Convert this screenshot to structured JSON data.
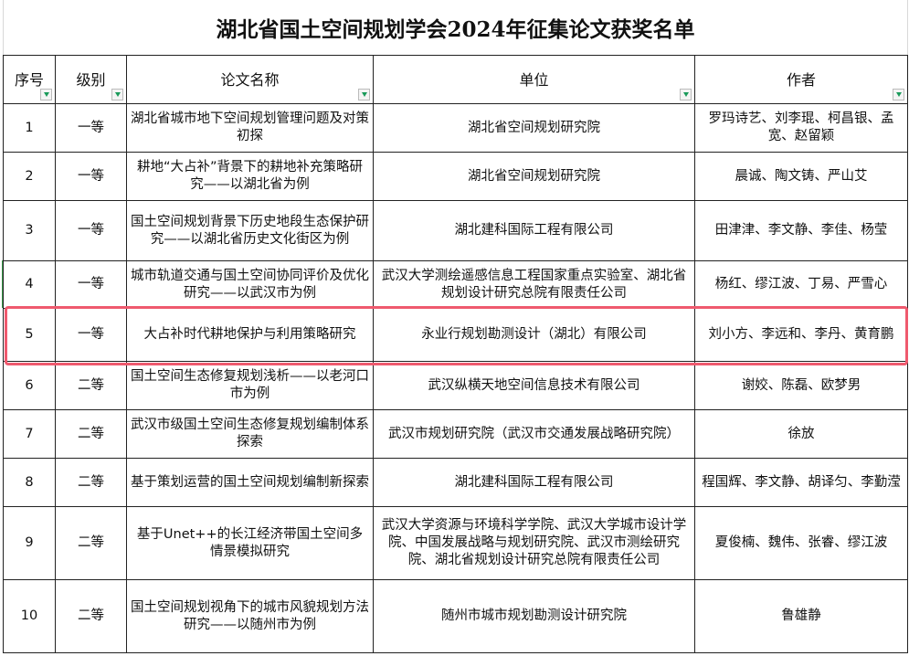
{
  "title": "湖北省国土空间规划学会2024年征集论文获奖名单",
  "columns": [
    "序号",
    "级别",
    "论文名称",
    "单位",
    "作者"
  ],
  "rows": [
    {
      "no": "1",
      "level": "一等",
      "paper": "湖北省城市地下空间规划管理问题及对策初探",
      "unit": "湖北省空间规划研究院",
      "authors": "罗玛诗艺、刘李琨、柯昌银、孟宽、赵留颖"
    },
    {
      "no": "2",
      "level": "一等",
      "paper": "耕地“大占补”背景下的耕地补充策略研究——以湖北省为例",
      "unit": "湖北省空间规划研究院",
      "authors": "晨诚、陶文铸、严山艾"
    },
    {
      "no": "3",
      "level": "一等",
      "paper": "国土空间规划背景下历史地段生态保护研究——以湖北省历史文化街区为例",
      "unit": "湖北建科国际工程有限公司",
      "authors": "田津津、李文静、李佳、杨莹"
    },
    {
      "no": "4",
      "level": "一等",
      "paper": "城市轨道交通与国土空间协同评价及优化研究——以武汉市为例",
      "unit": "武汉大学测绘遥感信息工程国家重点实验室、湖北省规划设计研究总院有限责任公司",
      "authors": "杨红、缪江波、丁易、严雪心"
    },
    {
      "no": "5",
      "level": "一等",
      "paper": "大占补时代耕地保护与利用策略研究",
      "unit": "永业行规划勘测设计（湖北）有限公司",
      "authors": "刘小方、李远和、李丹、黄育鹏"
    },
    {
      "no": "6",
      "level": "二等",
      "paper": "国土空间生态修复规划浅析——以老河口市为例",
      "unit": "武汉纵横天地空间信息技术有限公司",
      "authors": "谢姣、陈磊、欧梦男"
    },
    {
      "no": "7",
      "level": "二等",
      "paper": "武汉市级国土空间生态修复规划编制体系探索",
      "unit": "武汉市规划研究院（武汉市交通发展战略研究院）",
      "authors": "徐放"
    },
    {
      "no": "8",
      "level": "二等",
      "paper": "基于策划运营的国土空间规划编制新探索",
      "unit": "湖北建科国际工程有限公司",
      "authors": "程国辉、李文静、胡译匀、李勤滢"
    },
    {
      "no": "9",
      "level": "二等",
      "paper": "基于Unet++的长江经济带国土空间多情景模拟研究",
      "unit": "武汉大学资源与环境科学学院、武汉大学城市设计学院、中国发展战略与规划研究院、武汉市测绘研究院、湖北省规划设计研究总院有限责任公司",
      "authors": "夏俊楠、魏伟、张睿、缪江波"
    },
    {
      "no": "10",
      "level": "二等",
      "paper": "国土空间规划视角下的城市风貌规划方法研究——以随州市为例",
      "unit": "随州市城市规划勘测设计研究院",
      "authors": "鲁雄静"
    }
  ],
  "highlighted_row": "5",
  "colors": {
    "highlight": "#ef5a6e",
    "filter_arrow": "#1a9a5a"
  }
}
